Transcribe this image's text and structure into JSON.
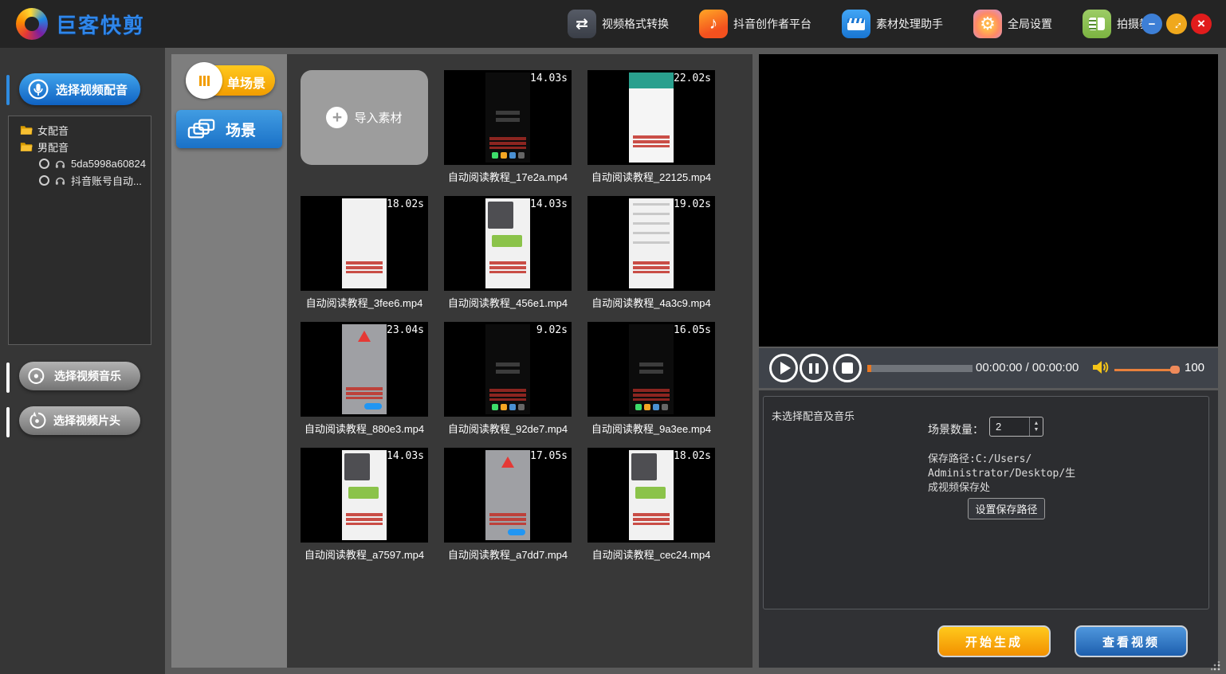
{
  "app": {
    "logo_text": "巨客快剪"
  },
  "topbar": {
    "nav": [
      {
        "label": "视频格式转换",
        "icon": "video-format-convert-icon"
      },
      {
        "label": "抖音创作者平台",
        "icon": "douyin-icon"
      },
      {
        "label": "素材处理助手",
        "icon": "clapperboard-icon"
      },
      {
        "label": "全局设置",
        "icon": "gear-icon"
      },
      {
        "label": "拍摄教程",
        "icon": "book-icon"
      }
    ],
    "window_controls": {
      "minimize": "−",
      "maximize": "↔",
      "close": "×"
    }
  },
  "sidebar": {
    "voice_button": "选择视频配音",
    "music_button": "选择视频音乐",
    "intro_button": "选择视频片头",
    "tree": {
      "folders": [
        "女配音",
        "男配音"
      ],
      "voices": [
        "5da5998a60824",
        "抖音账号自动..."
      ]
    }
  },
  "scene_panel": {
    "single_scene": "单场景",
    "scene": "场景"
  },
  "media": {
    "import_label": "导入素材",
    "items": [
      {
        "name": "自动阅读教程_17e2a.mp4",
        "duration": "14.03s",
        "variant": "dark"
      },
      {
        "name": "自动阅读教程_22125.mp4",
        "duration": "22.02s",
        "variant": "white-teal"
      },
      {
        "name": "自动阅读教程_3fee6.mp4",
        "duration": "18.02s",
        "variant": "white"
      },
      {
        "name": "自动阅读教程_456e1.mp4",
        "duration": "14.03s",
        "variant": "chat"
      },
      {
        "name": "自动阅读教程_4a3c9.mp4",
        "duration": "19.02s",
        "variant": "white-list"
      },
      {
        "name": "自动阅读教程_880e3.mp4",
        "duration": "23.04s",
        "variant": "warning"
      },
      {
        "name": "自动阅读教程_92de7.mp4",
        "duration": "9.02s",
        "variant": "dark"
      },
      {
        "name": "自动阅读教程_9a3ee.mp4",
        "duration": "16.05s",
        "variant": "dark"
      },
      {
        "name": "自动阅读教程_a7597.mp4",
        "duration": "14.03s",
        "variant": "chat"
      },
      {
        "name": "自动阅读教程_a7dd7.mp4",
        "duration": "17.05s",
        "variant": "warning"
      },
      {
        "name": "自动阅读教程_cec24.mp4",
        "duration": "18.02s",
        "variant": "chat"
      }
    ]
  },
  "player": {
    "time": "00:00:00 / 00:00:00",
    "volume": "100"
  },
  "settings": {
    "status": "未选择配音及音乐",
    "scene_count_label": "场景数量：",
    "scene_count_value": "2",
    "save_path_lines": [
      "保存路径:C:/Users/",
      "Administrator/Desktop/生",
      "成视频保存处"
    ],
    "set_path_button": "设置保存路径",
    "generate_button": "开始生成",
    "view_button": "查看视频"
  },
  "colors": {
    "accent_blue": "#2a7fd8",
    "accent_gold": "#ffb400",
    "slider_orange": "#e8803c",
    "brand_blue": "#2f86ea"
  }
}
